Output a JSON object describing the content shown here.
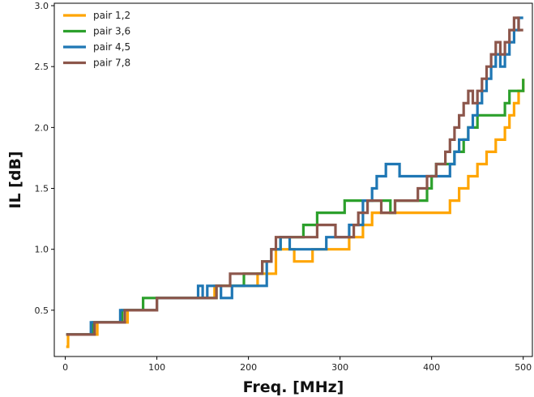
{
  "chart_data": {
    "type": "line",
    "step": true,
    "xlabel": "Freq. [MHz]",
    "ylabel": "IL  [dB]",
    "xlim": [
      -12,
      510
    ],
    "ylim": [
      0.12,
      3.02
    ],
    "xticks": [
      0,
      100,
      200,
      300,
      400,
      500
    ],
    "yticks": [
      0.5,
      1.0,
      1.5,
      2.0,
      2.5,
      3.0
    ],
    "xtick_labels": [
      "0",
      "100",
      "200",
      "300",
      "400",
      "500"
    ],
    "ytick_labels": [
      "0.5",
      "1.0",
      "1.5",
      "2.0",
      "2.5",
      "3.0"
    ],
    "grid": false,
    "legend_position": "top-left",
    "series": [
      {
        "name": "pair 1,2",
        "color": "#ffa500",
        "x": [
          1,
          3,
          8,
          35,
          68,
          90,
          100,
          163,
          210,
          230,
          245,
          250,
          270,
          290,
          310,
          325,
          335,
          420,
          430,
          440,
          450,
          460,
          470,
          480,
          485,
          490,
          495,
          500
        ],
        "y": [
          0.2,
          0.3,
          0.3,
          0.4,
          0.5,
          0.5,
          0.6,
          0.7,
          0.8,
          1.0,
          1.0,
          0.9,
          1.0,
          1.0,
          1.1,
          1.2,
          1.3,
          1.4,
          1.5,
          1.6,
          1.7,
          1.8,
          1.9,
          2.0,
          2.1,
          2.2,
          2.3,
          2.4
        ]
      },
      {
        "name": "pair 3,6",
        "color": "#2ca02c",
        "x": [
          1,
          30,
          62,
          85,
          102,
          165,
          195,
          215,
          225,
          235,
          240,
          260,
          275,
          285,
          305,
          310,
          320,
          345,
          355,
          360,
          380,
          395,
          400,
          405,
          425,
          435,
          440,
          445,
          450,
          460,
          480,
          485,
          490,
          500
        ],
        "y": [
          0.3,
          0.4,
          0.5,
          0.6,
          0.6,
          0.7,
          0.8,
          0.9,
          1.0,
          1.1,
          1.1,
          1.2,
          1.3,
          1.3,
          1.4,
          1.4,
          1.4,
          1.4,
          1.3,
          1.4,
          1.4,
          1.5,
          1.6,
          1.7,
          1.8,
          1.9,
          2.0,
          2.0,
          2.1,
          2.1,
          2.2,
          2.3,
          2.3,
          2.4
        ]
      },
      {
        "name": "pair 4,5",
        "color": "#1f77b4",
        "x": [
          1,
          28,
          60,
          100,
          145,
          150,
          155,
          170,
          182,
          220,
          225,
          235,
          245,
          270,
          285,
          310,
          325,
          335,
          340,
          350,
          365,
          420,
          425,
          430,
          440,
          445,
          450,
          455,
          460,
          465,
          470,
          475,
          480,
          485,
          490,
          495,
          500
        ],
        "y": [
          0.3,
          0.4,
          0.5,
          0.6,
          0.7,
          0.6,
          0.7,
          0.6,
          0.7,
          0.9,
          1.0,
          1.1,
          1.0,
          1.0,
          1.1,
          1.2,
          1.4,
          1.5,
          1.6,
          1.7,
          1.6,
          1.7,
          1.8,
          1.9,
          2.0,
          2.1,
          2.2,
          2.3,
          2.4,
          2.5,
          2.6,
          2.5,
          2.6,
          2.7,
          2.8,
          2.9,
          2.9
        ]
      },
      {
        "name": "pair 7,8",
        "color": "#8c564b",
        "x": [
          1,
          32,
          65,
          100,
          165,
          180,
          210,
          215,
          225,
          230,
          255,
          275,
          295,
          315,
          320,
          330,
          345,
          360,
          385,
          395,
          405,
          415,
          420,
          425,
          430,
          435,
          440,
          445,
          450,
          455,
          460,
          465,
          470,
          475,
          480,
          485,
          490,
          495,
          500
        ],
        "y": [
          0.3,
          0.4,
          0.5,
          0.6,
          0.7,
          0.8,
          0.8,
          0.9,
          1.0,
          1.1,
          1.1,
          1.2,
          1.1,
          1.2,
          1.3,
          1.4,
          1.3,
          1.4,
          1.5,
          1.6,
          1.7,
          1.8,
          1.9,
          2.0,
          2.1,
          2.2,
          2.3,
          2.2,
          2.3,
          2.4,
          2.5,
          2.6,
          2.7,
          2.6,
          2.7,
          2.8,
          2.9,
          2.8,
          2.8
        ]
      }
    ]
  }
}
